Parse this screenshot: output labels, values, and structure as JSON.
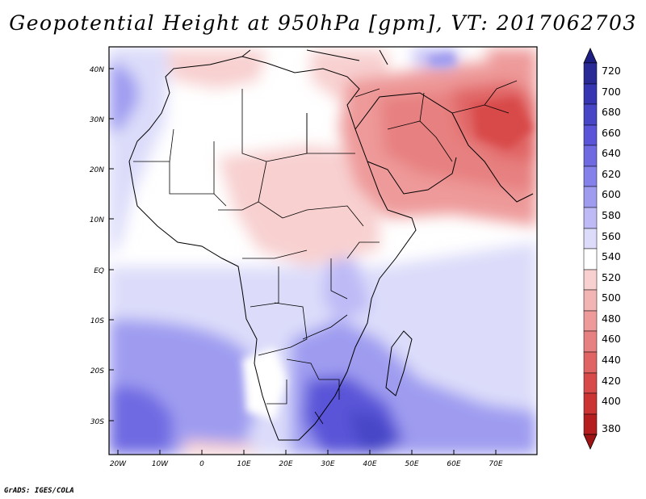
{
  "title": "Geopotential Height at 950hPa [gpm], VT: 2017062703",
  "credit": "GrADS: IGES/COLA",
  "map": {
    "region": "Africa, Middle East and western Indian Ocean",
    "lat_labels": [
      "40N",
      "30N",
      "20N",
      "10N",
      "EQ",
      "10S",
      "20S",
      "30S"
    ],
    "lon_labels": [
      "20W",
      "10W",
      "0",
      "10E",
      "20E",
      "30E",
      "40E",
      "50E",
      "60E",
      "70E"
    ],
    "field_colors": {
      "land_boundary": "#000000",
      "high_blue_core": "#5a55d8",
      "mid_blue": "#9f9cf0",
      "light_blue": "#dcdcfa",
      "near_white": "#ffffff",
      "light_red": "#f8d0d0",
      "mid_red": "#ee9a9a",
      "strong_red": "#e06464"
    }
  },
  "colorbar": {
    "labels": [
      "720",
      "700",
      "680",
      "660",
      "640",
      "620",
      "600",
      "580",
      "560",
      "540",
      "520",
      "500",
      "480",
      "460",
      "440",
      "420",
      "400",
      "380"
    ],
    "colors": [
      "#2a2a96",
      "#3636b2",
      "#4646c6",
      "#5a55d8",
      "#6f6ae2",
      "#8581ea",
      "#9f9cf0",
      "#bdbaf6",
      "#dcdcfa",
      "#ffffff",
      "#f8d0d0",
      "#f3b4b4",
      "#ee9a9a",
      "#e78080",
      "#e06464",
      "#d84a4a",
      "#cc3434",
      "#b51e1e"
    ],
    "top_arrow_color": "#1e1e82",
    "bottom_arrow_color": "#9e1414"
  }
}
